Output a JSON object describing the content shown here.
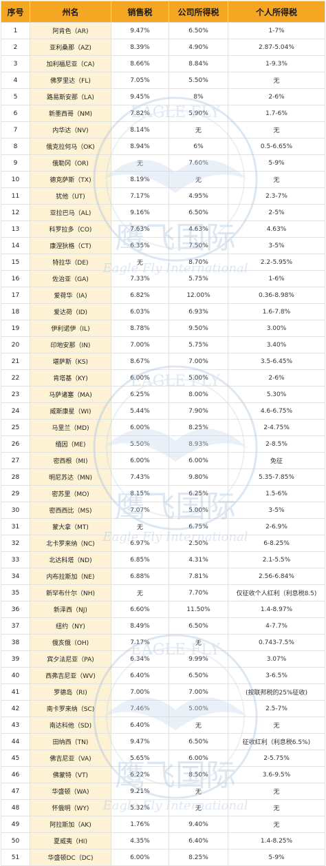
{
  "header": {
    "index": "序号",
    "state": "州名",
    "sales_tax": "销售税",
    "corporate_tax": "公司所得税",
    "personal_tax": "个人所得税"
  },
  "watermark": {
    "title": "EAGLE FLY",
    "chinese": "鹰飞国际",
    "english": "Eagle Fly International",
    "color": "#7aa0c8"
  },
  "colors": {
    "header_bg": "#f5a623",
    "state_bg": "#fdf2d4",
    "border": "#e3e3e3"
  },
  "rows": [
    {
      "index": "1",
      "state": "阿肯色（AR)",
      "sales": "9.47%",
      "corp": "6.50%",
      "personal": "1-7%"
    },
    {
      "index": "2",
      "state": "亚利桑那（AZ)",
      "sales": "8.39%",
      "corp": "4.90%",
      "personal": "2.87-5.04%"
    },
    {
      "index": "3",
      "state": "加利福尼亚（CA)",
      "sales": "8.66%",
      "corp": "8.84%",
      "personal": "1-9.3%"
    },
    {
      "index": "4",
      "state": "佛罗里达（FL)",
      "sales": "7.05%",
      "corp": "5.50%",
      "personal": "无"
    },
    {
      "index": "5",
      "state": "路易斯安那（LA)",
      "sales": "9.45%",
      "corp": "8%",
      "personal": "2-6%"
    },
    {
      "index": "6",
      "state": "新墨西哥（NM)",
      "sales": "7.82%",
      "corp": "5.90%",
      "personal": "1.7-6%"
    },
    {
      "index": "7",
      "state": "内华达（NV)",
      "sales": "8.14%",
      "corp": "无",
      "personal": "无"
    },
    {
      "index": "8",
      "state": "俄克拉何马（OK)",
      "sales": "8.94%",
      "corp": "6%",
      "personal": "0.5-6.65%"
    },
    {
      "index": "9",
      "state": "俄勒冈（OR)",
      "sales": "无",
      "corp": "7.60%",
      "personal": "5-9%"
    },
    {
      "index": "10",
      "state": "德克萨斯（TX)",
      "sales": "8.19%",
      "corp": "无",
      "personal": "无"
    },
    {
      "index": "11",
      "state": "犹他（UT)",
      "sales": "7.17%",
      "corp": "4.95%",
      "personal": "2.3-7%"
    },
    {
      "index": "12",
      "state": "亚拉巴马（AL)",
      "sales": "9.16%",
      "corp": "6.50%",
      "personal": "2-5%"
    },
    {
      "index": "13",
      "state": "科罗拉多（CO)",
      "sales": "7.63%",
      "corp": "4.63%",
      "personal": "4.63%"
    },
    {
      "index": "14",
      "state": "康涅狄格（CT)",
      "sales": "6.35%",
      "corp": "7.50%",
      "personal": "3-5%"
    },
    {
      "index": "15",
      "state": "特拉华（DE)",
      "sales": "无",
      "corp": "8.70%",
      "personal": "2.2-5.95%"
    },
    {
      "index": "16",
      "state": "佐治亚（GA)",
      "sales": "7.33%",
      "corp": "5.75%",
      "personal": "1-6%"
    },
    {
      "index": "17",
      "state": "爱荷华（IA)",
      "sales": "6.82%",
      "corp": "12.00%",
      "personal": "0.36-8.98%"
    },
    {
      "index": "18",
      "state": "爱达荷（ID)",
      "sales": "6.03%",
      "corp": "6.93%",
      "personal": "1.6-7.8%"
    },
    {
      "index": "19",
      "state": "伊利诺伊（IL)",
      "sales": "8.78%",
      "corp": "9.50%",
      "personal": "3.00%"
    },
    {
      "index": "20",
      "state": "印地安那（IN)",
      "sales": "7.00%",
      "corp": "5.75%",
      "personal": "3.40%"
    },
    {
      "index": "21",
      "state": "堪萨斯（KS)",
      "sales": "8.67%",
      "corp": "7.00%",
      "personal": "3.5-6.45%"
    },
    {
      "index": "22",
      "state": "肯塔基（KY)",
      "sales": "6.00%",
      "corp": "5.00%",
      "personal": "2-6%"
    },
    {
      "index": "23",
      "state": "马萨诸塞（MA)",
      "sales": "6.25%",
      "corp": "8.00%",
      "personal": "5.30%"
    },
    {
      "index": "24",
      "state": "威斯康星（WI)",
      "sales": "5.44%",
      "corp": "7.90%",
      "personal": "4.6-6.75%"
    },
    {
      "index": "25",
      "state": "马里兰（MD)",
      "sales": "6.00%",
      "corp": "8.25%",
      "personal": "2-4.75%"
    },
    {
      "index": "26",
      "state": "缅因（ME)",
      "sales": "5.50%",
      "corp": "8.93%",
      "personal": "2-8.5%"
    },
    {
      "index": "27",
      "state": "密西根（MI)",
      "sales": "6.00%",
      "corp": "6.00%",
      "personal": "免征"
    },
    {
      "index": "28",
      "state": "明尼苏达（MN)",
      "sales": "7.43%",
      "corp": "9.80%",
      "personal": "5.35-7.85%"
    },
    {
      "index": "29",
      "state": "密苏里（MO)",
      "sales": "8.15%",
      "corp": "6.25%",
      "personal": "1.5-6%"
    },
    {
      "index": "30",
      "state": "密西西比（MS)",
      "sales": "7.07%",
      "corp": "5.00%",
      "personal": "3-5%"
    },
    {
      "index": "31",
      "state": "蒙大拿（MT)",
      "sales": "无",
      "corp": "6.75%",
      "personal": "2-6.9%"
    },
    {
      "index": "32",
      "state": "北卡罗来纳（NC)",
      "sales": "6.97%",
      "corp": "2.50%",
      "personal": "6-8.25%"
    },
    {
      "index": "33",
      "state": "北达科塔（ND)",
      "sales": "6.85%",
      "corp": "4.31%",
      "personal": "2.1-5.5%"
    },
    {
      "index": "34",
      "state": "内布拉斯加（NE)",
      "sales": "6.88%",
      "corp": "7.81%",
      "personal": "2.56-6.84%"
    },
    {
      "index": "35",
      "state": "新罕布什尔（NH)",
      "sales": "无",
      "corp": "7.70%",
      "personal": "仅征收个人红利（利息税8.5)"
    },
    {
      "index": "36",
      "state": "新泽西（NJ)",
      "sales": "6.60%",
      "corp": "11.50%",
      "personal": "1.4-8.97%"
    },
    {
      "index": "37",
      "state": "纽约（NY)",
      "sales": "8.49%",
      "corp": "6.50%",
      "personal": "4-7.7%"
    },
    {
      "index": "38",
      "state": "俄亥俄（OH)",
      "sales": "7.17%",
      "corp": "无",
      "personal": "0.743-7.5%"
    },
    {
      "index": "39",
      "state": "宾夕法尼亚（PA)",
      "sales": "6.34%",
      "corp": "9.99%",
      "personal": "3.07%"
    },
    {
      "index": "40",
      "state": "西弗吉尼亚（WV)",
      "sales": "6.40%",
      "corp": "6.50%",
      "personal": "3-6.5%"
    },
    {
      "index": "41",
      "state": "罗德岛（RI)",
      "sales": "7.00%",
      "corp": "7.00%",
      "personal": "(按联邦税的25%征收)"
    },
    {
      "index": "42",
      "state": "南卡罗来纳（SC)",
      "sales": "7.46%",
      "corp": "5.00%",
      "personal": "2.5-7%"
    },
    {
      "index": "43",
      "state": "南达科他（SD)",
      "sales": "6.40%",
      "corp": "无",
      "personal": "无"
    },
    {
      "index": "44",
      "state": "田纳西（TN)",
      "sales": "9.47%",
      "corp": "6.50%",
      "personal": "征收红利（利息税6.5%)"
    },
    {
      "index": "45",
      "state": "佛吉尼亚（VA)",
      "sales": "5.65%",
      "corp": "6.00%",
      "personal": "2-5.75%"
    },
    {
      "index": "46",
      "state": "佛蒙特（VT)",
      "sales": "6.22%",
      "corp": "8.50%",
      "personal": "3.6-9.5%"
    },
    {
      "index": "47",
      "state": "华盛顿（WA)",
      "sales": "9.21%",
      "corp": "无",
      "personal": "无"
    },
    {
      "index": "48",
      "state": "怀俄明（WY)",
      "sales": "5.32%",
      "corp": "无",
      "personal": "无"
    },
    {
      "index": "49",
      "state": "阿拉斯加（AK)",
      "sales": "1.76%",
      "corp": "9.40%",
      "personal": "无"
    },
    {
      "index": "50",
      "state": "夏威夷（HI)",
      "sales": "4.35%",
      "corp": "6.40%",
      "personal": "1.4-8.25%"
    },
    {
      "index": "51",
      "state": "华盛顿DC（DC)",
      "sales": "6.00%",
      "corp": "8.25%",
      "personal": "5-9%"
    }
  ]
}
